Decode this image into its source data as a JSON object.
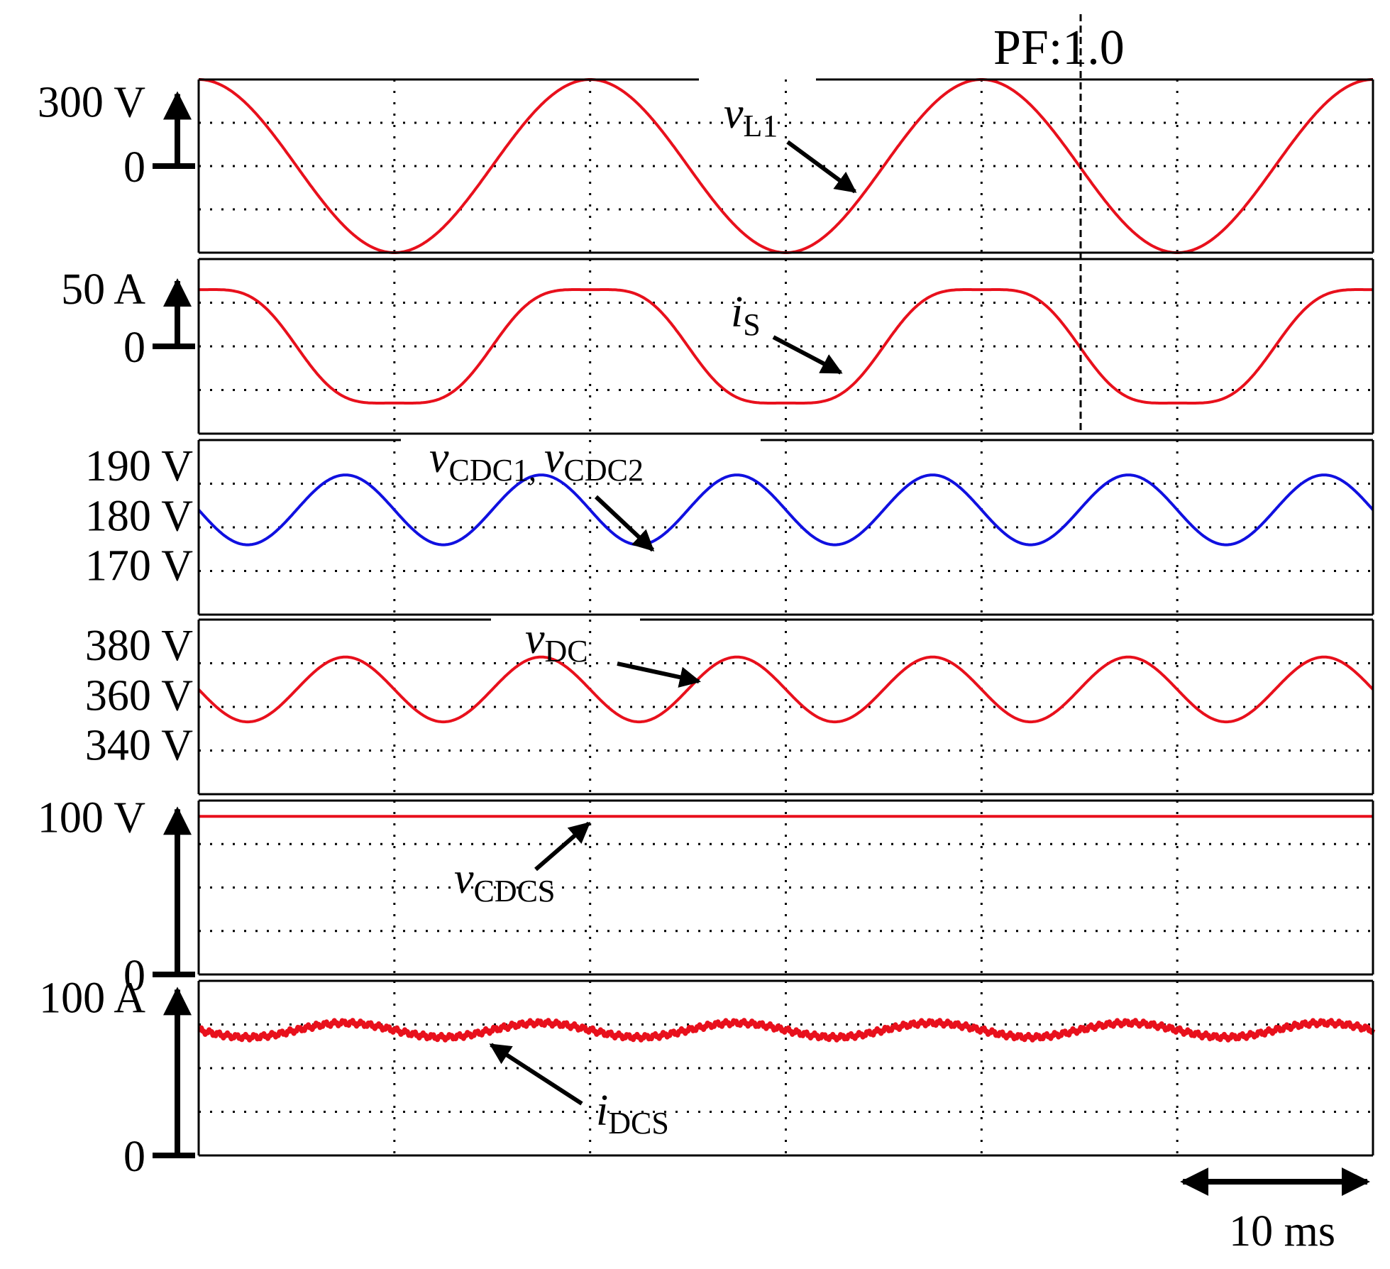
{
  "chart_data": {
    "type": "line",
    "figure_label": "PF:1.0",
    "time_scale": {
      "label": "10 ms",
      "value_ms": 10
    },
    "time_range_ms": [
      0,
      60
    ],
    "grid": true,
    "panels": [
      {
        "id": "vL1",
        "label": {
          "main": "v",
          "sub": "L1"
        },
        "color": "#e8101c",
        "ticks": [
          {
            "text": "300 V",
            "value": 300
          },
          {
            "text": "0",
            "value": 0
          }
        ],
        "ylim": [
          -400,
          400
        ],
        "waveform": {
          "shape": "sine",
          "offset": 0,
          "amplitude": 400,
          "frequency_hz": 50,
          "phase_deg": 90
        }
      },
      {
        "id": "iS",
        "label": {
          "main": "i",
          "sub": "S"
        },
        "color": "#e8101c",
        "ticks": [
          {
            "text": "50 A",
            "value": 50
          },
          {
            "text": "0",
            "value": 0
          }
        ],
        "ylim": [
          -75,
          75
        ],
        "waveform": {
          "shape": "distorted-sine",
          "offset": 0,
          "amplitude": 60,
          "frequency_hz": 50,
          "phase_deg": 90,
          "third_harmonic_ratio": 0.12
        }
      },
      {
        "id": "vCDC",
        "label": {
          "main": "v",
          "sub": "CDC1",
          "sep": ", ",
          "main2": "v",
          "sub2": "CDC2"
        },
        "color": "#1010e0",
        "ticks": [
          {
            "text": "190 V",
            "value": 190
          },
          {
            "text": "180 V",
            "value": 180
          },
          {
            "text": "170 V",
            "value": 170
          }
        ],
        "ylim": [
          160,
          195
        ],
        "waveform": {
          "shape": "sine",
          "offset": 181,
          "amplitude": 7,
          "frequency_hz": 100,
          "phase_deg": 180
        }
      },
      {
        "id": "vDC",
        "label": {
          "main": "v",
          "sub": "DC"
        },
        "color": "#e8101c",
        "ticks": [
          {
            "text": "380 V",
            "value": 380
          },
          {
            "text": "360 V",
            "value": 360
          },
          {
            "text": "340 V",
            "value": 340
          }
        ],
        "ylim": [
          320,
          390
        ],
        "waveform": {
          "shape": "sine",
          "offset": 362,
          "amplitude": 13,
          "frequency_hz": 100,
          "phase_deg": 180
        }
      },
      {
        "id": "vCDCS",
        "label": {
          "main": "v",
          "sub": "CDCS"
        },
        "color": "#e8101c",
        "ticks": [
          {
            "text": "100 V",
            "value": 100
          },
          {
            "text": "0",
            "value": 0
          }
        ],
        "ylim": [
          0,
          110
        ],
        "waveform": {
          "shape": "constant",
          "offset": 100
        }
      },
      {
        "id": "iDCS",
        "label": {
          "main": "i",
          "sub": "DCS"
        },
        "color": "#e8101c",
        "ticks": [
          {
            "text": "100 A",
            "value": 100
          },
          {
            "text": "0",
            "value": 0
          }
        ],
        "ylim": [
          0,
          110
        ],
        "waveform": {
          "shape": "sine",
          "offset": 79,
          "amplitude": 4.5,
          "frequency_hz": 100,
          "phase_deg": 180,
          "ripple": 1.2
        }
      }
    ]
  }
}
